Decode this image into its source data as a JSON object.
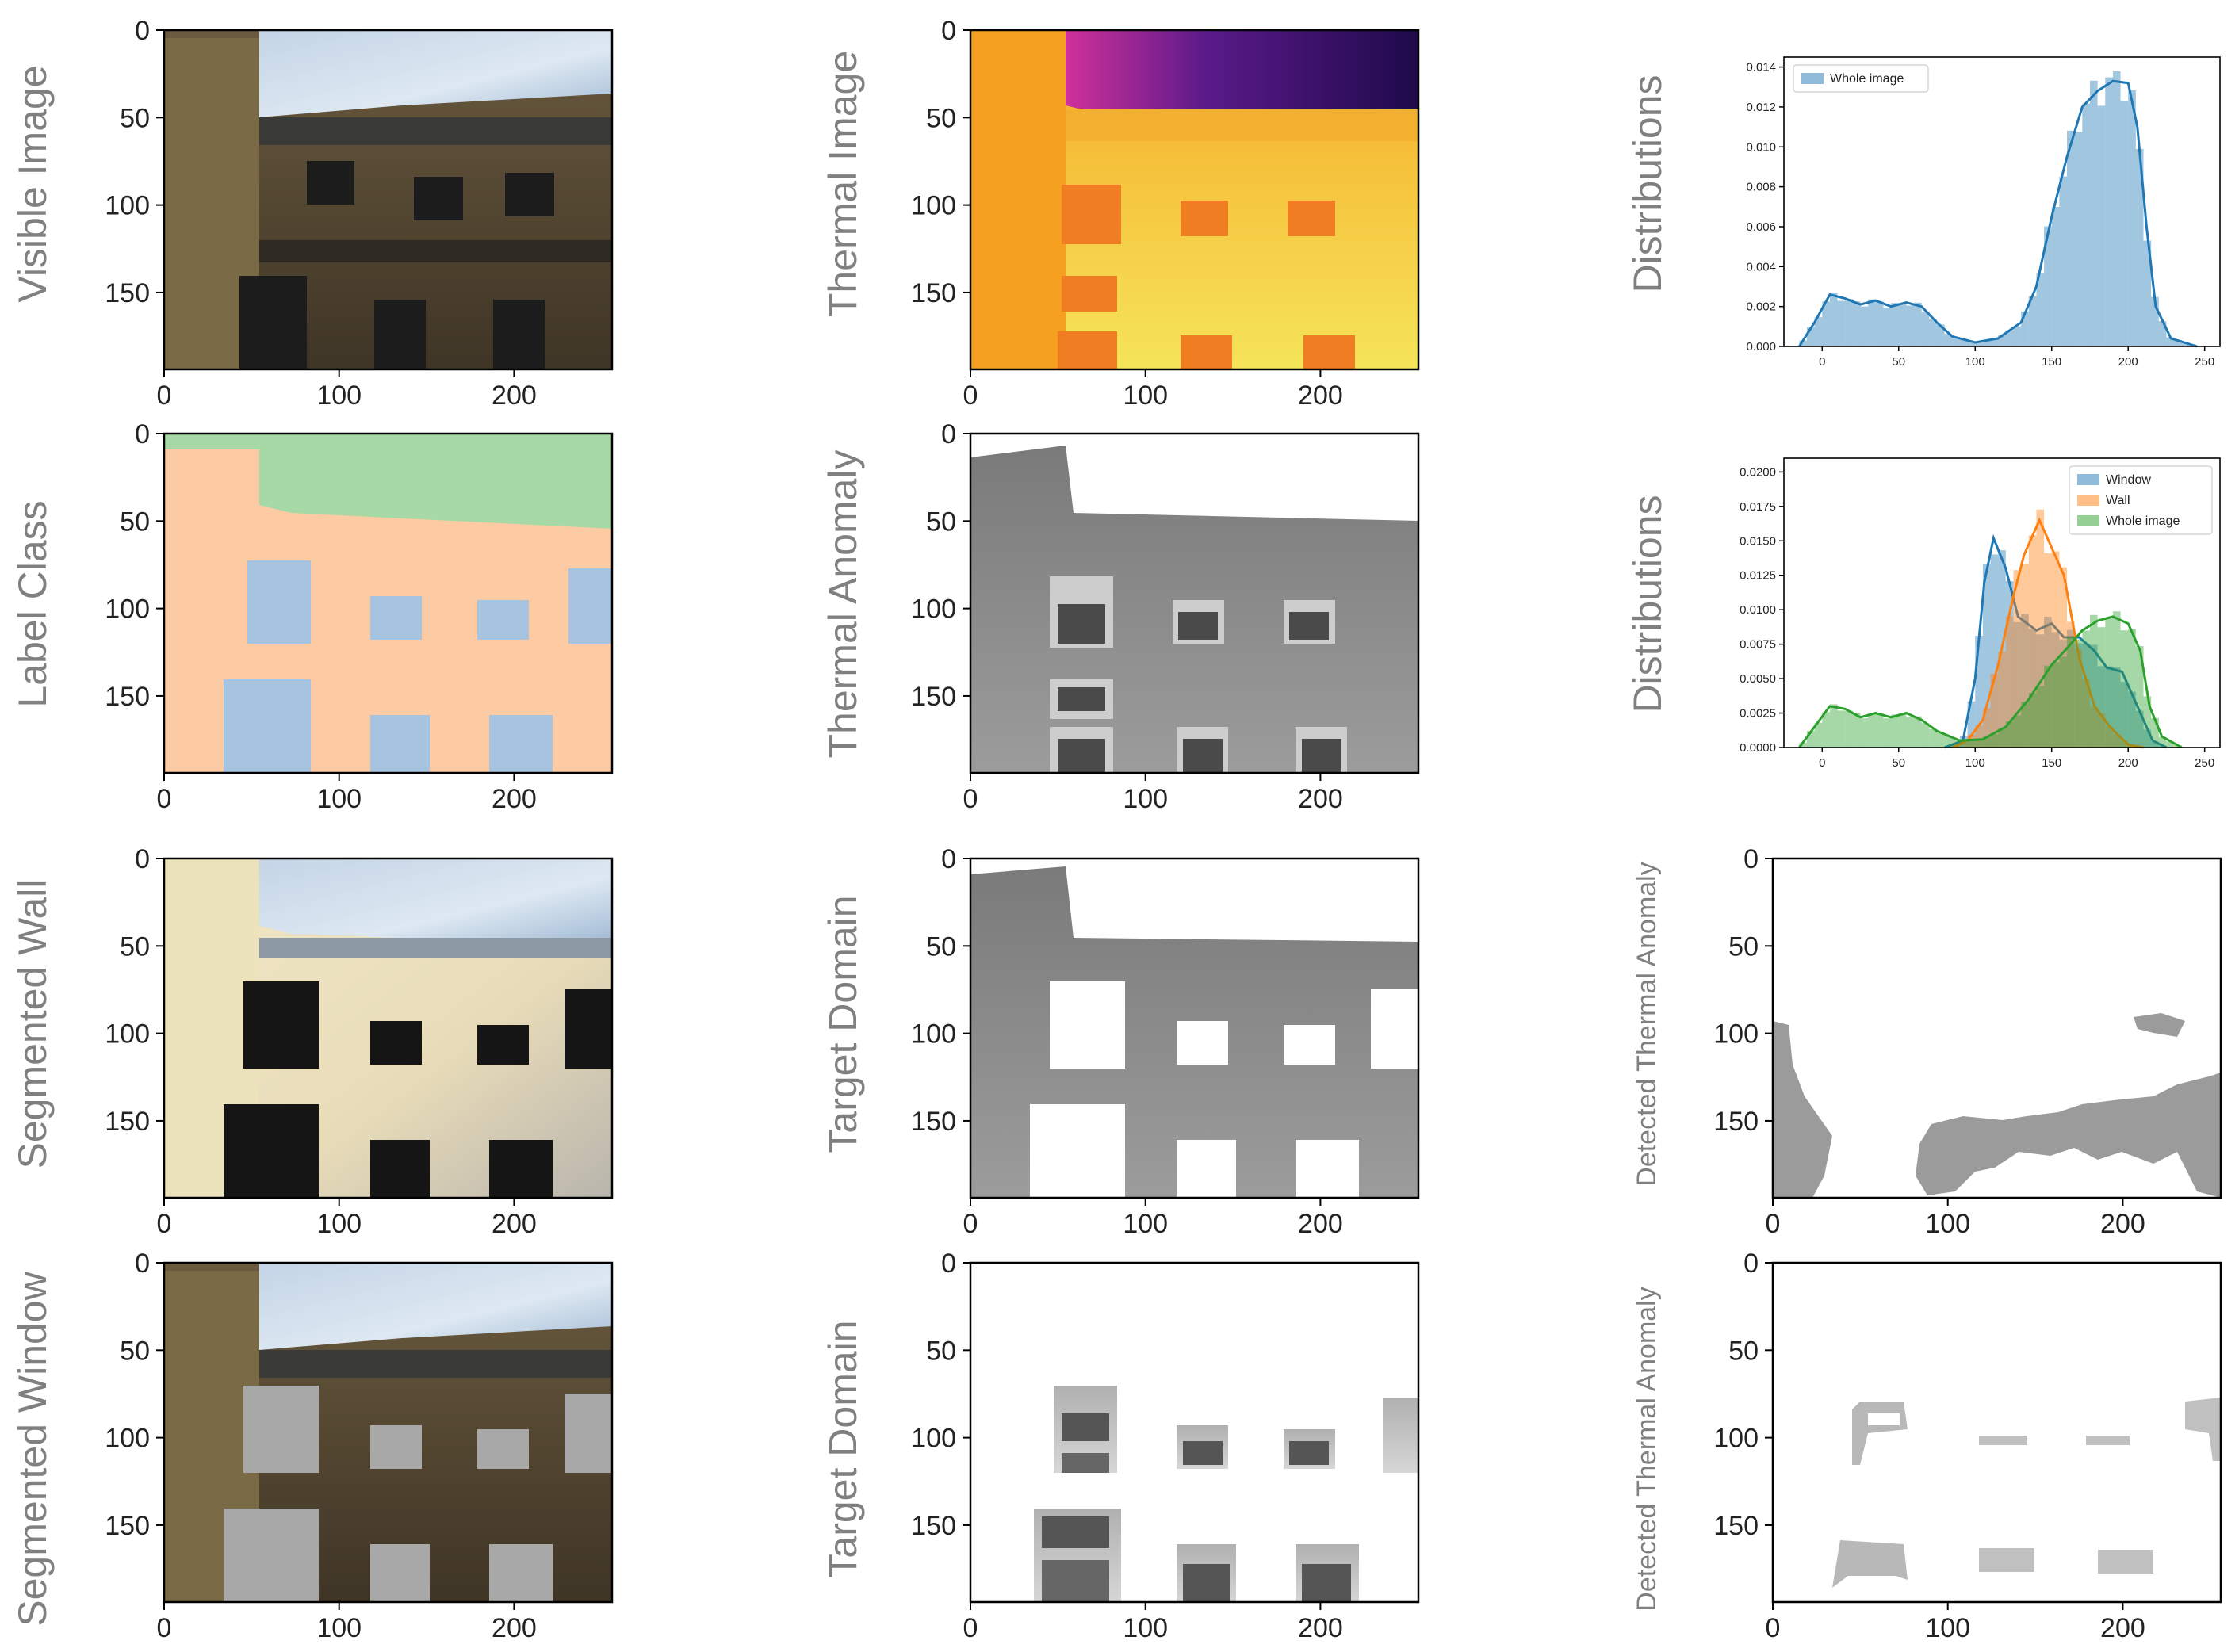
{
  "figure": {
    "image_axis": {
      "x_ticks": [
        "0",
        "100",
        "200"
      ],
      "y_ticks": [
        "0",
        "50",
        "100",
        "150"
      ]
    },
    "rows": [
      {
        "col1_label": "Visible Image",
        "col2_label": "Thermal Image",
        "col3_label": "Distributions"
      },
      {
        "col1_label": "Label Class",
        "col2_label": "Thermal Anomaly",
        "col3_label": "Distributions"
      },
      {
        "col1_label": "Segmented Wall",
        "col2_label": "Target Domain",
        "col3_label": "Detected Thermal Anomaly"
      },
      {
        "col1_label": "Segmented Window",
        "col2_label": "Target Domain",
        "col3_label": "Detected Thermal Anomaly"
      }
    ]
  },
  "chart_data": [
    {
      "type": "histogram",
      "title": "",
      "ylabel": "Distributions",
      "xlim": [
        -25,
        260
      ],
      "ylim": [
        0,
        0.0145
      ],
      "x_ticks": [
        "0",
        "50",
        "100",
        "150",
        "200",
        "250"
      ],
      "y_ticks": [
        "0.000",
        "0.002",
        "0.004",
        "0.006",
        "0.008",
        "0.010",
        "0.012",
        "0.014"
      ],
      "legend": [
        "Whole image"
      ],
      "series": [
        {
          "name": "Whole image",
          "color": "#1f77b4",
          "kde": [
            [
              -15,
              0
            ],
            [
              -5,
              0.0012
            ],
            [
              5,
              0.0026
            ],
            [
              15,
              0.0024
            ],
            [
              25,
              0.0021
            ],
            [
              35,
              0.0023
            ],
            [
              45,
              0.002
            ],
            [
              55,
              0.0022
            ],
            [
              65,
              0.002
            ],
            [
              75,
              0.0012
            ],
            [
              85,
              0.0005
            ],
            [
              100,
              0.0002
            ],
            [
              115,
              0.0004
            ],
            [
              130,
              0.0012
            ],
            [
              140,
              0.003
            ],
            [
              150,
              0.0065
            ],
            [
              160,
              0.0095
            ],
            [
              170,
              0.012
            ],
            [
              180,
              0.0128
            ],
            [
              190,
              0.0133
            ],
            [
              200,
              0.0132
            ],
            [
              206,
              0.011
            ],
            [
              212,
              0.006
            ],
            [
              218,
              0.002
            ],
            [
              228,
              0.0004
            ],
            [
              245,
              0
            ]
          ]
        }
      ]
    },
    {
      "type": "histogram",
      "title": "",
      "ylabel": "Distributions",
      "xlim": [
        -25,
        260
      ],
      "ylim": [
        0,
        0.021
      ],
      "x_ticks": [
        "0",
        "50",
        "100",
        "150",
        "200",
        "250"
      ],
      "y_ticks": [
        "0.0000",
        "0.0025",
        "0.0050",
        "0.0075",
        "0.0100",
        "0.0125",
        "0.0150",
        "0.0175",
        "0.0200"
      ],
      "legend": [
        "Window",
        "Wall",
        "Whole image"
      ],
      "series": [
        {
          "name": "Window",
          "color": "#1f77b4",
          "kde": [
            [
              80,
              0
            ],
            [
              92,
              0.0005
            ],
            [
              100,
              0.005
            ],
            [
              106,
              0.012
            ],
            [
              112,
              0.0152
            ],
            [
              120,
              0.013
            ],
            [
              128,
              0.0095
            ],
            [
              140,
              0.0085
            ],
            [
              150,
              0.009
            ],
            [
              158,
              0.008
            ],
            [
              168,
              0.008
            ],
            [
              178,
              0.007
            ],
            [
              186,
              0.0058
            ],
            [
              196,
              0.0055
            ],
            [
              206,
              0.003
            ],
            [
              216,
              0.0005
            ],
            [
              225,
              0
            ]
          ]
        },
        {
          "name": "Wall",
          "color": "#ff7f0e",
          "kde": [
            [
              85,
              0
            ],
            [
              95,
              0.0005
            ],
            [
              105,
              0.002
            ],
            [
              115,
              0.006
            ],
            [
              125,
              0.011
            ],
            [
              132,
              0.014
            ],
            [
              142,
              0.0165
            ],
            [
              148,
              0.015
            ],
            [
              158,
              0.0125
            ],
            [
              168,
              0.0065
            ],
            [
              178,
              0.003
            ],
            [
              188,
              0.0015
            ],
            [
              200,
              0.0002
            ],
            [
              210,
              0
            ]
          ]
        },
        {
          "name": "Whole image",
          "color": "#2ca02c",
          "kde": [
            [
              -15,
              0
            ],
            [
              -5,
              0.0015
            ],
            [
              5,
              0.003
            ],
            [
              15,
              0.0028
            ],
            [
              25,
              0.0022
            ],
            [
              35,
              0.0025
            ],
            [
              45,
              0.0022
            ],
            [
              55,
              0.0025
            ],
            [
              65,
              0.002
            ],
            [
              75,
              0.0012
            ],
            [
              90,
              0.0005
            ],
            [
              105,
              0.0006
            ],
            [
              120,
              0.0015
            ],
            [
              135,
              0.0035
            ],
            [
              150,
              0.006
            ],
            [
              160,
              0.0072
            ],
            [
              170,
              0.0085
            ],
            [
              180,
              0.0092
            ],
            [
              190,
              0.0095
            ],
            [
              200,
              0.009
            ],
            [
              208,
              0.007
            ],
            [
              214,
              0.003
            ],
            [
              222,
              0.0008
            ],
            [
              235,
              0
            ]
          ]
        }
      ]
    }
  ]
}
